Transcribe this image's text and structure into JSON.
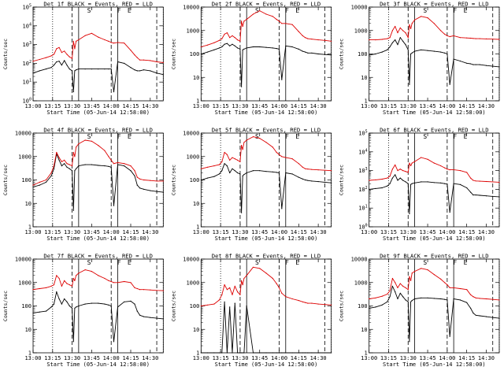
{
  "figure": {
    "xlabel": "Start Time (05-Jun-14 12:58:00)",
    "ylabel": "Counts/sec",
    "x_ticks": [
      "13:00",
      "13:15",
      "13:30",
      "13:45",
      "14:00",
      "14:15",
      "14:30"
    ],
    "x_range_minutes": [
      0,
      100
    ],
    "markers": {
      "dotted_lines_min": [
        15,
        100
      ],
      "dashed_lines_min": [
        30,
        60,
        95
      ],
      "solid_lines_min": [
        35,
        65
      ],
      "letters": [
        {
          "label": "S",
          "at_min": 43
        },
        {
          "label": "F",
          "at_min": 66
        },
        {
          "label": "E",
          "at_min": 74
        }
      ]
    },
    "colors": {
      "events": "#000000",
      "lld": "#dd0000"
    }
  },
  "chart_data": [
    {
      "type": "line",
      "title": "Det 1f BLACK = Events, RED = LLD",
      "ylim": [
        1,
        100000
      ],
      "yscale": "log",
      "y_ticks": [
        "10^0",
        "10^1",
        "10^2",
        "10^3",
        "10^4",
        "10^5"
      ],
      "x_minutes": [
        0,
        5,
        10,
        14,
        16,
        18,
        20,
        22,
        24,
        26,
        28,
        30,
        31,
        32,
        33,
        35,
        40,
        45,
        50,
        55,
        58,
        60,
        62,
        65,
        70,
        75,
        78,
        80,
        82,
        85,
        90,
        95,
        100
      ],
      "series": [
        {
          "name": "Events",
          "values": [
            30,
            40,
            50,
            60,
            80,
            120,
            130,
            80,
            140,
            80,
            50,
            40,
            3,
            40,
            45,
            50,
            50,
            50,
            50,
            50,
            50,
            50,
            3,
            120,
            100,
            60,
            45,
            40,
            40,
            45,
            40,
            30,
            25
          ]
        },
        {
          "name": "LLD",
          "values": [
            130,
            160,
            200,
            250,
            300,
            600,
            700,
            380,
            450,
            300,
            220,
            180,
            1500,
            600,
            1500,
            1800,
            3000,
            4000,
            2500,
            1800,
            1500,
            1300,
            1200,
            1300,
            1200,
            500,
            280,
            200,
            150,
            150,
            140,
            120,
            110
          ]
        }
      ]
    },
    {
      "type": "line",
      "title": "Det 2f BLACK = Events, RED = LLD",
      "ylim": [
        1,
        10000
      ],
      "yscale": "log",
      "y_ticks": [
        "1",
        "10",
        "100",
        "1000",
        "10000"
      ],
      "x_minutes": [
        0,
        5,
        10,
        14,
        16,
        18,
        20,
        22,
        24,
        26,
        28,
        30,
        31,
        32,
        33,
        35,
        40,
        45,
        50,
        55,
        58,
        60,
        62,
        65,
        70,
        75,
        78,
        80,
        82,
        85,
        90,
        95,
        100
      ],
      "series": [
        {
          "name": "Events",
          "values": [
            100,
            120,
            150,
            180,
            200,
            260,
            280,
            220,
            260,
            220,
            180,
            160,
            4,
            150,
            160,
            180,
            200,
            200,
            190,
            180,
            170,
            160,
            8,
            220,
            200,
            160,
            130,
            120,
            110,
            110,
            100,
            95,
            90
          ]
        },
        {
          "name": "LLD",
          "values": [
            200,
            240,
            300,
            380,
            450,
            700,
            800,
            500,
            600,
            500,
            400,
            350,
            2500,
            1500,
            2500,
            3000,
            5000,
            7000,
            5000,
            4000,
            3000,
            2500,
            2000,
            2000,
            1800,
            900,
            600,
            500,
            450,
            430,
            400,
            380,
            350
          ]
        }
      ]
    },
    {
      "type": "line",
      "title": "Det 3f BLACK = Events, RED = LLD",
      "ylim": [
        1,
        10000
      ],
      "yscale": "log",
      "y_ticks": [
        "1",
        "10",
        "100",
        "1000",
        "10000"
      ],
      "x_minutes": [
        0,
        5,
        10,
        14,
        16,
        18,
        20,
        22,
        24,
        26,
        28,
        30,
        31,
        32,
        33,
        35,
        40,
        45,
        50,
        55,
        58,
        60,
        62,
        65,
        70,
        75,
        78,
        80,
        82,
        85,
        90,
        95,
        100
      ],
      "series": [
        {
          "name": "Events",
          "values": [
            90,
            100,
            120,
            150,
            200,
            300,
            400,
            250,
            500,
            350,
            250,
            150,
            5,
            100,
            110,
            130,
            150,
            140,
            130,
            120,
            110,
            100,
            5,
            60,
            50,
            40,
            38,
            35,
            35,
            35,
            32,
            30,
            28
          ]
        },
        {
          "name": "LLD",
          "values": [
            400,
            400,
            420,
            450,
            500,
            1000,
            1500,
            800,
            1300,
            1000,
            800,
            500,
            1800,
            1200,
            2000,
            2800,
            4000,
            3500,
            2000,
            1000,
            700,
            600,
            550,
            600,
            500,
            480,
            470,
            460,
            450,
            450,
            440,
            430,
            420
          ]
        }
      ]
    },
    {
      "type": "line",
      "title": "Det 4f BLACK = Events, RED = LLD",
      "ylim": [
        1,
        10000
      ],
      "yscale": "log",
      "y_ticks": [
        "1",
        "10",
        "100",
        "1000",
        "10000"
      ],
      "x_minutes": [
        0,
        5,
        10,
        14,
        16,
        18,
        20,
        22,
        24,
        26,
        28,
        30,
        31,
        32,
        33,
        35,
        40,
        45,
        50,
        55,
        58,
        60,
        62,
        65,
        70,
        75,
        78,
        80,
        82,
        85,
        90,
        95,
        100
      ],
      "series": [
        {
          "name": "Events",
          "values": [
            50,
            60,
            80,
            150,
            300,
            1300,
            700,
            400,
            500,
            350,
            300,
            250,
            5,
            250,
            300,
            400,
            450,
            450,
            420,
            400,
            380,
            350,
            8,
            450,
            400,
            250,
            150,
            60,
            45,
            40,
            35,
            32,
            30
          ]
        },
        {
          "name": "LLD",
          "values": [
            60,
            80,
            100,
            200,
            400,
            1500,
            900,
            600,
            700,
            500,
            450,
            400,
            1500,
            1000,
            2500,
            3500,
            5000,
            4500,
            3000,
            1800,
            1000,
            700,
            500,
            550,
            500,
            400,
            250,
            130,
            110,
            100,
            95,
            90,
            90
          ]
        }
      ]
    },
    {
      "type": "line",
      "title": "Det 5f BLACK = Events, RED = LLD",
      "ylim": [
        1,
        10000
      ],
      "yscale": "log",
      "y_ticks": [
        "1",
        "10",
        "100",
        "1000",
        "10000"
      ],
      "x_minutes": [
        0,
        5,
        10,
        14,
        16,
        18,
        20,
        22,
        24,
        26,
        28,
        30,
        31,
        32,
        33,
        35,
        40,
        45,
        50,
        55,
        58,
        60,
        62,
        65,
        70,
        75,
        78,
        80,
        82,
        85,
        90,
        95,
        100
      ],
      "series": [
        {
          "name": "Events",
          "values": [
            100,
            120,
            140,
            180,
            250,
            500,
            400,
            200,
            300,
            250,
            200,
            180,
            4,
            150,
            170,
            200,
            250,
            250,
            230,
            220,
            210,
            200,
            6,
            200,
            180,
            130,
            110,
            100,
            95,
            90,
            85,
            80,
            75
          ]
        },
        {
          "name": "LLD",
          "values": [
            300,
            350,
            400,
            450,
            600,
            1500,
            1200,
            700,
            900,
            800,
            700,
            600,
            3000,
            2000,
            4000,
            5000,
            7000,
            6000,
            4000,
            2500,
            1500,
            1200,
            1000,
            900,
            800,
            500,
            350,
            300,
            290,
            280,
            270,
            260,
            250
          ]
        }
      ]
    },
    {
      "type": "line",
      "title": "Det 6f BLACK = Events, RED = LLD",
      "ylim": [
        1,
        100000
      ],
      "yscale": "log",
      "y_ticks": [
        "10^0",
        "10^1",
        "10^2",
        "10^3",
        "10^4",
        "10^5"
      ],
      "x_minutes": [
        0,
        5,
        10,
        14,
        16,
        18,
        20,
        22,
        24,
        26,
        28,
        30,
        31,
        32,
        33,
        35,
        40,
        45,
        50,
        55,
        58,
        60,
        62,
        65,
        70,
        75,
        78,
        80,
        82,
        85,
        90,
        95,
        100
      ],
      "series": [
        {
          "name": "Events",
          "values": [
            100,
            110,
            120,
            150,
            200,
            400,
            600,
            300,
            400,
            300,
            250,
            200,
            5,
            180,
            200,
            220,
            250,
            250,
            230,
            220,
            200,
            190,
            6,
            200,
            180,
            120,
            70,
            50,
            50,
            48,
            45,
            42,
            40
          ]
        },
        {
          "name": "LLD",
          "values": [
            300,
            320,
            350,
            400,
            500,
            1200,
            2000,
            1000,
            1200,
            1000,
            900,
            800,
            2500,
            1800,
            2500,
            3000,
            5000,
            4000,
            2500,
            1800,
            1400,
            1200,
            1100,
            1100,
            1000,
            800,
            400,
            300,
            280,
            270,
            260,
            250,
            240
          ]
        }
      ]
    },
    {
      "type": "line",
      "title": "Det 7f BLACK = Events, RED = LLD",
      "ylim": [
        1,
        10000
      ],
      "yscale": "log",
      "y_ticks": [
        "1",
        "10",
        "100",
        "1000",
        "10000"
      ],
      "x_minutes": [
        0,
        5,
        10,
        14,
        16,
        18,
        20,
        22,
        24,
        26,
        28,
        30,
        31,
        32,
        33,
        35,
        40,
        45,
        50,
        55,
        58,
        60,
        62,
        65,
        70,
        75,
        78,
        80,
        82,
        85,
        90,
        95,
        100
      ],
      "series": [
        {
          "name": "Events",
          "values": [
            50,
            55,
            60,
            90,
            120,
            400,
            200,
            120,
            200,
            150,
            100,
            80,
            3,
            80,
            90,
            100,
            120,
            130,
            130,
            120,
            110,
            100,
            3,
            90,
            150,
            160,
            120,
            60,
            40,
            35,
            32,
            30,
            28
          ]
        },
        {
          "name": "LLD",
          "values": [
            500,
            550,
            600,
            700,
            800,
            2000,
            1500,
            700,
            1200,
            900,
            800,
            700,
            1500,
            1200,
            2000,
            2500,
            3500,
            3000,
            2000,
            1500,
            1200,
            1100,
            1000,
            1000,
            1100,
            1000,
            600,
            550,
            500,
            500,
            480,
            460,
            450
          ]
        }
      ]
    },
    {
      "type": "line",
      "title": "Det 8f BLACK = Events, RED = LLD",
      "ylim": [
        1,
        10000
      ],
      "yscale": "log",
      "y_ticks": [
        "1",
        "10",
        "100",
        "1000",
        "10000"
      ],
      "x_minutes": [
        0,
        5,
        10,
        14,
        16,
        18,
        20,
        22,
        24,
        26,
        28,
        30,
        31,
        32,
        33,
        35,
        40,
        45,
        50,
        55,
        58,
        60,
        62,
        65,
        70,
        75,
        78,
        80,
        82,
        85,
        90,
        95,
        100
      ],
      "series": [
        {
          "name": "Events",
          "values": [
            1,
            1,
            1,
            1,
            1,
            150,
            1,
            90,
            1,
            130,
            1,
            1,
            1,
            1,
            1,
            100,
            1,
            1,
            1,
            1,
            1,
            1,
            1,
            1,
            1,
            1,
            1,
            1,
            1,
            1,
            1,
            1,
            1
          ]
        },
        {
          "name": "LLD",
          "values": [
            100,
            110,
            120,
            180,
            300,
            800,
            500,
            600,
            300,
            700,
            400,
            300,
            1200,
            800,
            1500,
            2000,
            4500,
            4000,
            2500,
            1500,
            900,
            600,
            350,
            250,
            200,
            170,
            150,
            140,
            130,
            130,
            120,
            115,
            110
          ]
        }
      ]
    },
    {
      "type": "line",
      "title": "Det 9f BLACK = Events, RED = LLD",
      "ylim": [
        1,
        10000
      ],
      "yscale": "log",
      "y_ticks": [
        "1",
        "10",
        "100",
        "1000",
        "10000"
      ],
      "x_minutes": [
        0,
        5,
        10,
        14,
        16,
        18,
        20,
        22,
        24,
        26,
        28,
        30,
        31,
        32,
        33,
        35,
        40,
        45,
        50,
        55,
        58,
        60,
        62,
        65,
        70,
        75,
        78,
        80,
        82,
        85,
        90,
        95,
        100
      ],
      "series": [
        {
          "name": "Events",
          "values": [
            80,
            90,
            110,
            150,
            250,
            700,
            400,
            200,
            350,
            250,
            180,
            150,
            3,
            150,
            170,
            200,
            220,
            220,
            210,
            200,
            190,
            180,
            5,
            200,
            180,
            140,
            80,
            50,
            40,
            38,
            35,
            32,
            30
          ]
        },
        {
          "name": "LLD",
          "values": [
            200,
            220,
            260,
            320,
            450,
            1500,
            1000,
            600,
            900,
            700,
            600,
            500,
            1800,
            1200,
            2500,
            3000,
            4000,
            3500,
            2200,
            1400,
            1000,
            800,
            600,
            600,
            550,
            500,
            300,
            250,
            220,
            210,
            200,
            190,
            180
          ]
        }
      ]
    }
  ]
}
